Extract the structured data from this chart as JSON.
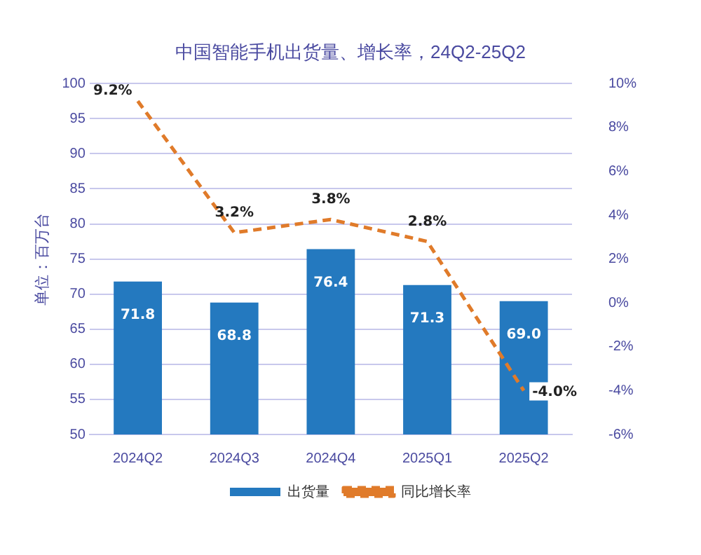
{
  "chart_data": {
    "type": "bar",
    "title": "中国智能手机出货量、增长率，24Q2-25Q2",
    "ylabel": "单位：百万台",
    "categories": [
      "2024Q2",
      "2024Q3",
      "2024Q4",
      "2025Q1",
      "2025Q2"
    ],
    "series": [
      {
        "name": "出货量",
        "color": "#2479bf",
        "values": [
          71.8,
          68.8,
          76.4,
          71.3,
          69.0
        ],
        "value_labels": [
          "71.8",
          "68.8",
          "76.4",
          "71.3",
          "69.0"
        ]
      },
      {
        "name": "同比增长率",
        "type": "line",
        "axis": "y2",
        "color": "#e07b2a",
        "line_style": "dashed",
        "marker": "none",
        "values": [
          9.2,
          3.2,
          3.8,
          2.8,
          -4.0
        ],
        "value_labels": [
          "9.2%",
          "3.2%",
          "3.8%",
          "2.8%",
          "-4.0%"
        ]
      }
    ],
    "ylim": [
      50,
      100
    ],
    "yticks": [
      50,
      55,
      60,
      65,
      70,
      75,
      80,
      85,
      90,
      95,
      100
    ],
    "y2lim": [
      -6,
      10
    ],
    "y2ticks": [
      {
        "value": -6,
        "label": "-6%"
      },
      {
        "value": -4,
        "label": "-4%"
      },
      {
        "value": -2,
        "label": "-2%"
      },
      {
        "value": 0,
        "label": "0%"
      },
      {
        "value": 2,
        "label": "2%"
      },
      {
        "value": 4,
        "label": "4%"
      },
      {
        "value": 6,
        "label": "6%"
      },
      {
        "value": 8,
        "label": "8%"
      },
      {
        "value": 10,
        "label": "10%"
      }
    ],
    "grid": "y",
    "legend": "bottom"
  }
}
